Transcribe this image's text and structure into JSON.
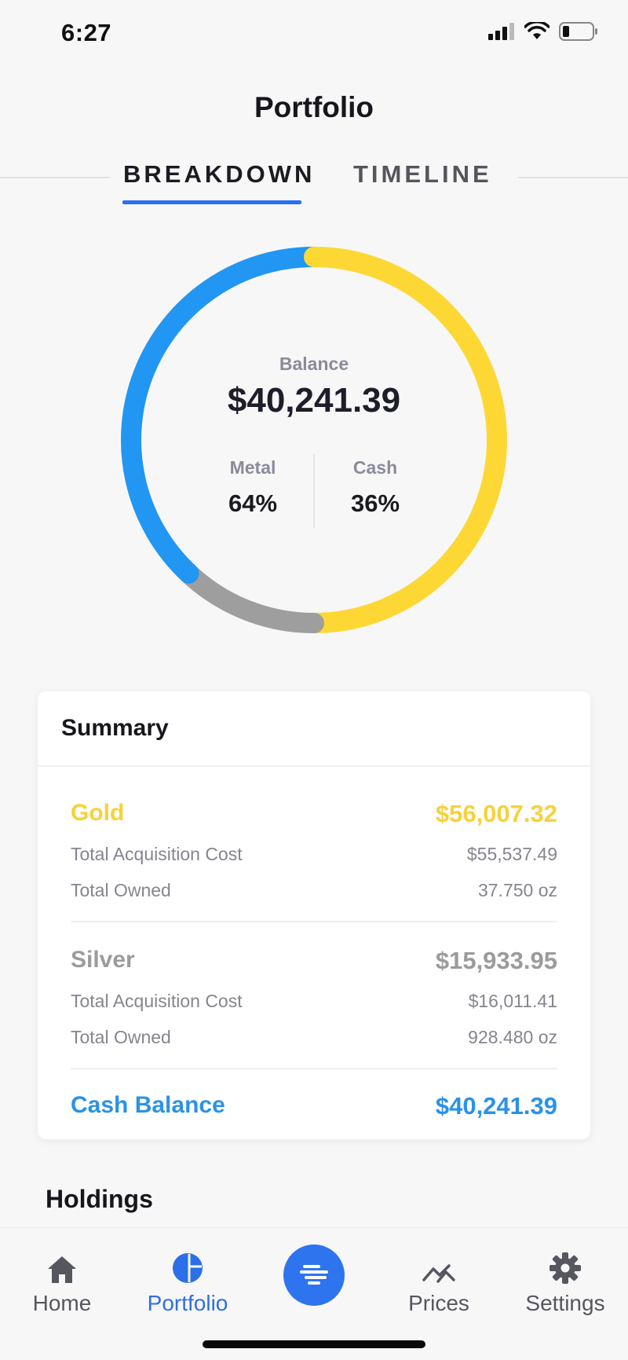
{
  "status_bar": {
    "time": "6:27"
  },
  "header": {
    "title": "Portfolio"
  },
  "tabs": [
    {
      "label": "BREAKDOWN",
      "active": true
    },
    {
      "label": "TIMELINE",
      "active": false
    }
  ],
  "balance": {
    "label": "Balance",
    "value": "$40,241.39",
    "metal_label": "Metal",
    "metal_percent": "64%",
    "cash_label": "Cash",
    "cash_percent": "36%"
  },
  "chart_data": {
    "type": "pie",
    "categories": [
      "Blue",
      "Yellow",
      "Gray"
    ],
    "values": [
      38,
      50,
      12
    ],
    "colors": {
      "blue": "#2196f3",
      "yellow": "#fdd835",
      "gray": "#9e9e9e"
    }
  },
  "summary": {
    "title": "Summary",
    "gold": {
      "name": "Gold",
      "total": "$56,007.32",
      "cost_label": "Total Acquisition Cost",
      "cost": "$55,537.49",
      "owned_label": "Total Owned",
      "owned": "37.750 oz"
    },
    "silver": {
      "name": "Silver",
      "total": "$15,933.95",
      "cost_label": "Total Acquisition Cost",
      "cost": "$16,011.41",
      "owned_label": "Total Owned",
      "owned": "928.480 oz"
    },
    "cash": {
      "name": "Cash Balance",
      "total": "$40,241.39"
    }
  },
  "holdings": {
    "title": "Holdings"
  },
  "tabbar": {
    "items": [
      {
        "label": "Home",
        "icon": "home-icon",
        "active": false
      },
      {
        "label": "Portfolio",
        "icon": "pie-chart-icon",
        "active": true
      },
      {
        "label": "",
        "icon": "menu-lines-icon",
        "active": false
      },
      {
        "label": "Prices",
        "icon": "trend-icon",
        "active": false
      },
      {
        "label": "Settings",
        "icon": "gear-icon",
        "active": false
      }
    ]
  },
  "colors": {
    "accent": "#2d74ee",
    "gold": "#f6d23a",
    "silver": "#9b9b9e",
    "cash": "#2a92e8"
  }
}
